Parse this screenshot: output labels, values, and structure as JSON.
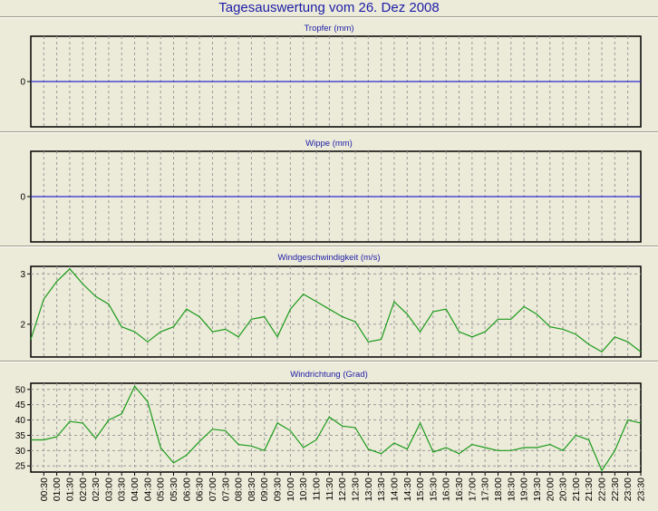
{
  "title": "Tagesauswertung vom 26. Dez 2008",
  "colors": {
    "background": "#ecebd9",
    "title": "#1c1ca8",
    "zero_line": "#2a2ad0",
    "series": "#1a9a1a",
    "grid": "#9a9a9a"
  },
  "time_labels": [
    "00:30",
    "01:00",
    "01:30",
    "02:00",
    "02:30",
    "03:00",
    "03:30",
    "04:00",
    "04:30",
    "05:00",
    "05:30",
    "06:00",
    "06:30",
    "07:00",
    "07:30",
    "08:00",
    "08:30",
    "09:00",
    "09:30",
    "10:00",
    "10:30",
    "11:00",
    "11:30",
    "12:00",
    "12:30",
    "13:00",
    "13:30",
    "14:00",
    "14:30",
    "15:00",
    "15:30",
    "16:00",
    "16:30",
    "17:00",
    "17:30",
    "18:00",
    "18:30",
    "19:00",
    "19:30",
    "20:00",
    "20:30",
    "21:00",
    "21:30",
    "22:00",
    "22:30",
    "23:00",
    "23:30"
  ],
  "chart_data": [
    {
      "type": "line",
      "title": "Tropfer (mm)",
      "yticks": [
        0
      ],
      "ylim": [
        -1,
        1
      ],
      "grid": true,
      "series": [
        {
          "values": [
            0,
            0,
            0,
            0,
            0,
            0,
            0,
            0,
            0,
            0,
            0,
            0,
            0,
            0,
            0,
            0,
            0,
            0,
            0,
            0,
            0,
            0,
            0,
            0,
            0,
            0,
            0,
            0,
            0,
            0,
            0,
            0,
            0,
            0,
            0,
            0,
            0,
            0,
            0,
            0,
            0,
            0,
            0,
            0,
            0,
            0,
            0,
            0
          ]
        }
      ]
    },
    {
      "type": "line",
      "title": "Wippe (mm)",
      "yticks": [
        0
      ],
      "ylim": [
        -1,
        1
      ],
      "grid": true,
      "series": [
        {
          "values": [
            0,
            0,
            0,
            0,
            0,
            0,
            0,
            0,
            0,
            0,
            0,
            0,
            0,
            0,
            0,
            0,
            0,
            0,
            0,
            0,
            0,
            0,
            0,
            0,
            0,
            0,
            0,
            0,
            0,
            0,
            0,
            0,
            0,
            0,
            0,
            0,
            0,
            0,
            0,
            0,
            0,
            0,
            0,
            0,
            0,
            0,
            0,
            0
          ]
        }
      ]
    },
    {
      "type": "line",
      "title": "Windgeschwindigkeit (m/s)",
      "yticks": [
        2,
        3
      ],
      "ylim": [
        1.35,
        3.15
      ],
      "grid": true,
      "series": [
        {
          "values": [
            1.7,
            2.5,
            2.85,
            3.1,
            2.8,
            2.55,
            2.4,
            1.95,
            1.85,
            1.65,
            1.85,
            1.95,
            2.3,
            2.15,
            1.85,
            1.9,
            1.75,
            2.1,
            2.15,
            1.75,
            2.3,
            2.6,
            2.45,
            2.3,
            2.15,
            2.05,
            1.65,
            1.7,
            2.45,
            2.2,
            1.85,
            2.25,
            2.3,
            1.85,
            1.75,
            1.85,
            2.1,
            2.1,
            2.35,
            2.2,
            1.95,
            1.9,
            1.8,
            1.6,
            1.45,
            1.75,
            1.65,
            1.45
          ]
        }
      ]
    },
    {
      "type": "line",
      "title": "Windrichtung (Grad)",
      "yticks": [
        25,
        30,
        35,
        40,
        45,
        50
      ],
      "ylim": [
        23,
        52
      ],
      "grid": true,
      "series": [
        {
          "values": [
            33.5,
            33.5,
            34.5,
            39.5,
            39,
            34,
            40,
            42,
            51,
            46,
            31,
            26,
            28.5,
            33,
            37,
            36.5,
            32,
            31.5,
            30,
            39,
            36.5,
            31,
            33.5,
            41,
            38,
            37.5,
            30.5,
            29,
            32.5,
            30.5,
            39,
            29.5,
            31,
            29,
            32,
            31,
            30,
            30,
            31,
            31,
            32,
            30,
            35,
            33.5,
            23.5,
            30,
            40,
            39
          ]
        }
      ]
    }
  ]
}
